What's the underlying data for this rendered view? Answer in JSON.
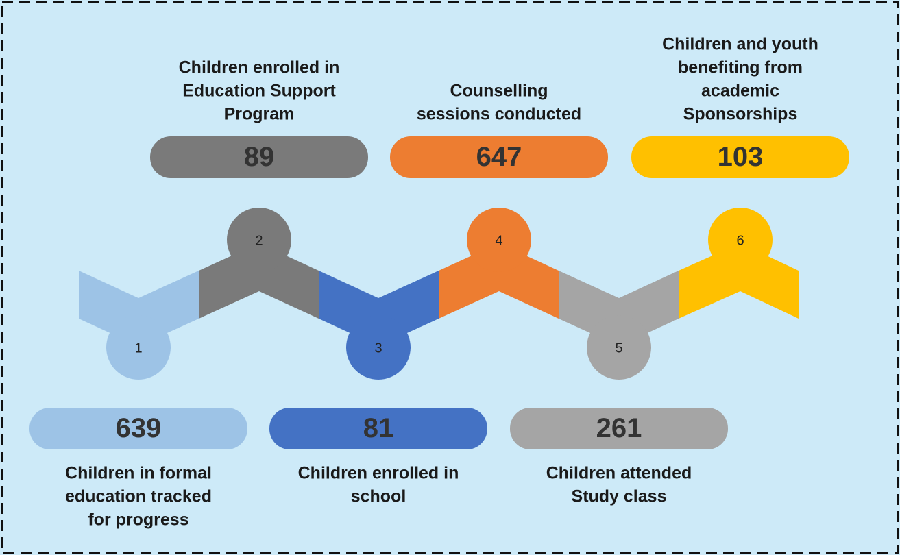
{
  "items": [
    {
      "step": 1,
      "value": 639,
      "label": [
        "Children in formal",
        "education tracked",
        "for progress"
      ]
    },
    {
      "step": 2,
      "value": 89,
      "label": [
        "Children enrolled in",
        "Education Support",
        "Program"
      ]
    },
    {
      "step": 3,
      "value": 81,
      "label": [
        "Children enrolled in",
        "school"
      ]
    },
    {
      "step": 4,
      "value": 647,
      "label": [
        "Counselling",
        "sessions conducted"
      ]
    },
    {
      "step": 5,
      "value": 261,
      "label": [
        "Children attended",
        "Study class"
      ]
    },
    {
      "step": 6,
      "value": 103,
      "label": [
        "Children and youth",
        "benefiting from",
        "academic",
        "Sponsorships"
      ]
    }
  ]
}
